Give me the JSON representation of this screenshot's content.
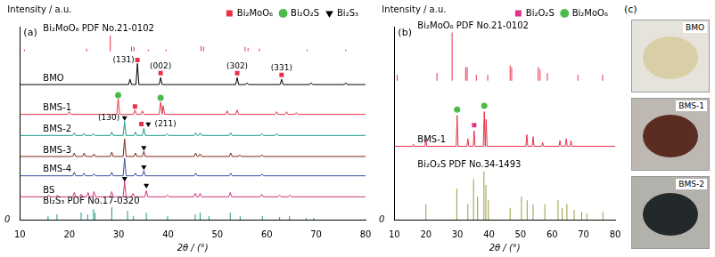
{
  "chart_data": [
    {
      "type": "line",
      "panel_label": "(a)",
      "y_label": "Intensity / a.u.",
      "x_label": "2θ / (°)",
      "xlim": [
        10,
        80
      ],
      "xticks": [
        10,
        20,
        30,
        40,
        50,
        60,
        70,
        80
      ],
      "ylim": [
        0,
        110
      ],
      "yticks": [
        0
      ],
      "grid": false,
      "legend": "top-right",
      "series": [
        {
          "name": "Bi₂MoO₆ PDF No.21-0102",
          "type": "stick",
          "color": "#e8324a",
          "baseline": 96,
          "x": [
            10.9,
            23.5,
            28.3,
            32.6,
            33.1,
            36.0,
            39.6,
            46.7,
            47.2,
            55.6,
            56.2,
            58.5,
            68.2,
            76.0
          ],
          "values": [
            1,
            1.5,
            9,
            2.5,
            2.5,
            1,
            1,
            3,
            2.5,
            2.5,
            2,
            1.5,
            1,
            1
          ]
        },
        {
          "name": "BMO",
          "type": "line",
          "color": "#000000",
          "baseline": 77,
          "x": [
            32.3,
            33.8,
            38.5,
            54.0,
            56.0,
            63.0,
            69.0,
            76.0
          ],
          "values": [
            3,
            12,
            4,
            4,
            1,
            3,
            1,
            1
          ]
        },
        {
          "name": "BMS-1",
          "type": "line",
          "color": "#e8324a",
          "baseline": 60,
          "x": [
            20.0,
            29.9,
            33.3,
            34.8,
            38.5,
            39.0,
            52.0,
            54.0,
            62.0,
            64.0,
            66.0
          ],
          "values": [
            1.5,
            9,
            2.5,
            2,
            7,
            5,
            2,
            2.5,
            1.5,
            1.5,
            1
          ]
        },
        {
          "name": "BMS-2",
          "type": "line",
          "color": "#1a9b8a",
          "baseline": 48,
          "x": [
            21.0,
            23.0,
            24.9,
            28.6,
            31.2,
            33.4,
            35.1,
            39.8,
            45.6,
            46.5,
            52.7,
            59.0,
            62.0
          ],
          "values": [
            1.5,
            1.2,
            1,
            2,
            8,
            2,
            4,
            1,
            1.5,
            1.5,
            1.5,
            1,
            1
          ]
        },
        {
          "name": "BMS-3",
          "type": "line",
          "color": "#7a2a1a",
          "baseline": 36,
          "x": [
            21.0,
            23.0,
            25.0,
            28.6,
            31.2,
            33.4,
            35.1,
            45.6,
            46.5,
            52.7,
            54.5,
            59.0
          ],
          "values": [
            2,
            2,
            1.5,
            2.5,
            10,
            2,
            3,
            2,
            1.5,
            2,
            1,
            1
          ]
        },
        {
          "name": "BMS-4",
          "type": "line",
          "color": "#3b4fa0",
          "baseline": 25,
          "x": [
            21.0,
            23.0,
            25.0,
            28.6,
            31.2,
            33.4,
            35.1,
            45.6,
            52.7,
            59.0
          ],
          "values": [
            2,
            1.5,
            1.2,
            2,
            10,
            1.5,
            3,
            1.5,
            1.5,
            1
          ]
        },
        {
          "name": "BS",
          "type": "line",
          "color": "#d6337a",
          "baseline": 13,
          "x": [
            15.8,
            17.6,
            21.0,
            22.4,
            23.8,
            25.0,
            28.6,
            31.2,
            32.9,
            35.6,
            39.9,
            45.5,
            46.5,
            52.6,
            59.0,
            62.6,
            64.7
          ],
          "values": [
            1,
            1,
            2.5,
            1.5,
            2.5,
            3,
            3,
            9,
            2,
            3.5,
            1,
            2,
            2,
            2.5,
            1.5,
            1,
            1
          ]
        },
        {
          "name": "Bi₂S₃ PDF No.17-0320",
          "type": "stick",
          "color": "#1a9b8a",
          "baseline": 0,
          "x": [
            15.7,
            17.5,
            22.4,
            23.7,
            24.9,
            25.2,
            28.6,
            31.8,
            33.0,
            35.6,
            39.9,
            45.5,
            46.5,
            48.3,
            52.6,
            54.6,
            59.1,
            62.6,
            64.6,
            68.0,
            69.5
          ],
          "values": [
            2,
            3,
            4,
            3,
            6,
            4,
            7,
            5,
            2,
            4,
            2,
            3,
            4,
            2,
            4,
            2,
            2,
            1.5,
            2,
            1,
            1
          ]
        }
      ],
      "markers": [
        {
          "name": "Bi₂MoO₆",
          "marker": "square",
          "color": "#e8324a",
          "x": [
            33.8,
            38.5,
            54.0,
            63.0,
            33.3,
            34.6
          ],
          "y": [
            91,
            83.5,
            83.5,
            82.5,
            64.5,
            54.5
          ]
        },
        {
          "name": "Bi₂O₂S",
          "marker": "circle",
          "color": "#4cbb4c",
          "x": [
            29.9,
            38.5
          ],
          "y": [
            71,
            69.5
          ]
        },
        {
          "name": "Bi₂S₃",
          "marker": "triangle_down",
          "color": "#000000",
          "x": [
            31.2,
            36.0,
            35.1,
            35.1,
            31.2,
            35.6
          ],
          "y": [
            58,
            54.5,
            41,
            30,
            23.5,
            19.5
          ]
        }
      ],
      "annotations": [
        {
          "text": "(131)",
          "x": 31.0,
          "y": 91
        },
        {
          "text": "(002)",
          "x": 38.5,
          "y": 87.5
        },
        {
          "text": "(302)",
          "x": 54.0,
          "y": 87.5
        },
        {
          "text": "(331)",
          "x": 63.0,
          "y": 86.5
        },
        {
          "text": "(130)",
          "x": 28.0,
          "y": 58
        },
        {
          "text": "(211)",
          "x": 39.5,
          "y": 54.5
        }
      ]
    },
    {
      "type": "line",
      "panel_label": "(b)",
      "y_label": "Intensity / a.u.",
      "x_label": "2θ / (°)",
      "xlim": [
        10,
        80
      ],
      "xticks": [
        10,
        20,
        30,
        40,
        50,
        60,
        70,
        80
      ],
      "ylim": [
        0,
        100
      ],
      "yticks": [
        0
      ],
      "grid": false,
      "legend": "top-right",
      "series": [
        {
          "name": "Bi₂MoO₆ PDF No.21-0102",
          "type": "stick",
          "color": "#e8324a",
          "baseline": 72,
          "x": [
            10.9,
            23.5,
            28.3,
            32.6,
            33.1,
            36.0,
            39.6,
            46.7,
            47.2,
            55.6,
            56.2,
            58.5,
            68.2,
            76.0
          ],
          "values": [
            3,
            4,
            25,
            7,
            7,
            3,
            3,
            8,
            7,
            7,
            6,
            4,
            3,
            3
          ]
        },
        {
          "name": "BMS-1",
          "type": "line",
          "color": "#e8324a",
          "baseline": 38,
          "x": [
            16.0,
            20.0,
            29.9,
            33.3,
            35.3,
            38.5,
            39.1,
            52.0,
            54.0,
            57.0,
            62.5,
            64.5,
            66.0
          ],
          "values": [
            1,
            4,
            16,
            4,
            8,
            18,
            14,
            6,
            5,
            2,
            3,
            4,
            3
          ]
        },
        {
          "name": "Bi₂O₂S PDF No.34-1493",
          "type": "stick",
          "color": "#9a9a40",
          "baseline": 0,
          "x": [
            20.0,
            29.8,
            33.3,
            35.1,
            36.4,
            38.4,
            39.0,
            39.8,
            46.7,
            50.3,
            52.1,
            54.0,
            57.7,
            61.9,
            63.2,
            64.7,
            67.0,
            69.4,
            71.0,
            76.1
          ],
          "values": [
            8,
            16,
            8,
            21,
            12,
            25,
            18,
            10,
            6,
            12,
            10,
            8,
            8,
            10,
            6,
            8,
            5,
            4,
            3,
            4
          ]
        }
      ],
      "markers": [
        {
          "name": "Bi₂O₂S",
          "marker": "square",
          "color": "#e0348c",
          "x": [
            35.3
          ],
          "y": [
            49
          ]
        },
        {
          "name": "Bi₂MoO₆",
          "marker": "circle",
          "color": "#4cbb4c",
          "x": [
            29.9,
            38.5
          ],
          "y": [
            57,
            59
          ]
        }
      ],
      "annotations": []
    }
  ],
  "panel_c": {
    "label": "(c)",
    "photos": [
      {
        "name": "BMO",
        "color": "#d9cfa6",
        "background": "#e6e3dc"
      },
      {
        "name": "BMS-1",
        "color": "#5b2c22",
        "background": "#bdb9b2"
      },
      {
        "name": "BMS-2",
        "color": "#23282a",
        "background": "#b3b1ac"
      }
    ]
  }
}
